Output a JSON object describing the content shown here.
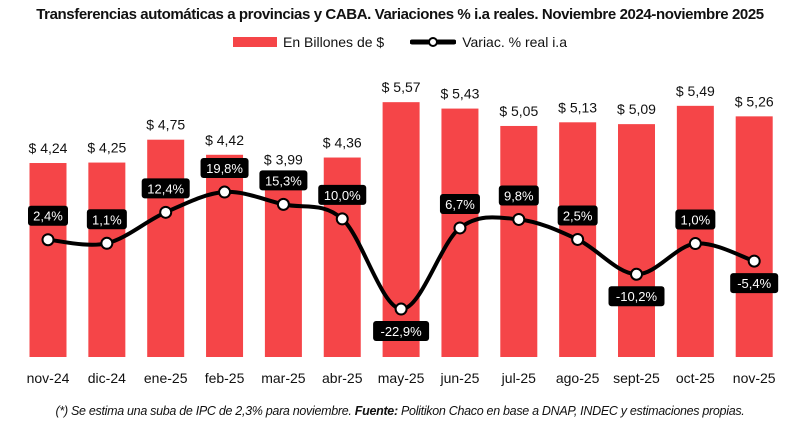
{
  "chart_data": {
    "type": "bar+line",
    "title": "Transferencias automáticas a provincias y CABA. Variaciones % i.a reales. Noviembre 2024-noviembre 2025",
    "categories": [
      "nov-24",
      "dic-24",
      "ene-25",
      "feb-25",
      "mar-25",
      "abr-25",
      "may-25",
      "jun-25",
      "jul-25",
      "ago-25",
      "sept-25",
      "oct-25",
      "nov-25"
    ],
    "series": [
      {
        "name": "En Billones de $",
        "type": "bar",
        "color": "#f54548",
        "values": [
          4.24,
          4.25,
          4.75,
          4.42,
          3.99,
          4.36,
          5.57,
          5.43,
          5.05,
          5.13,
          5.09,
          5.49,
          5.26
        ],
        "labels": [
          "$ 4,24",
          "$ 4,25",
          "$ 4,75",
          "$ 4,42",
          "$ 3,99",
          "$ 4,36",
          "$ 5,57",
          "$ 5,43",
          "$ 5,05",
          "$ 5,13",
          "$ 5,09",
          "$ 5,49",
          "$ 5,26"
        ]
      },
      {
        "name": "Variac. % real i.a",
        "type": "line",
        "color": "#000000",
        "values": [
          2.4,
          1.1,
          12.4,
          19.8,
          15.3,
          10.0,
          -22.9,
          6.7,
          9.8,
          2.5,
          -10.2,
          1.0,
          -5.4
        ],
        "labels": [
          "2,4%",
          "1,1%",
          "12,4%",
          "19,8%",
          "15,3%",
          "10,0%",
          "-22,9%",
          "6,7%",
          "9,8%",
          "2,5%",
          "-10,2%",
          "1,0%",
          "-5,4%"
        ]
      }
    ],
    "legend": "top-center",
    "grid": false,
    "footer": {
      "note": "(*) Se estima una suba de IPC de 2,3% para noviembre.",
      "source_label": "Fuente:",
      "source": "Politikon Chaco en base a DNAP, INDEC y estimaciones propias."
    }
  }
}
